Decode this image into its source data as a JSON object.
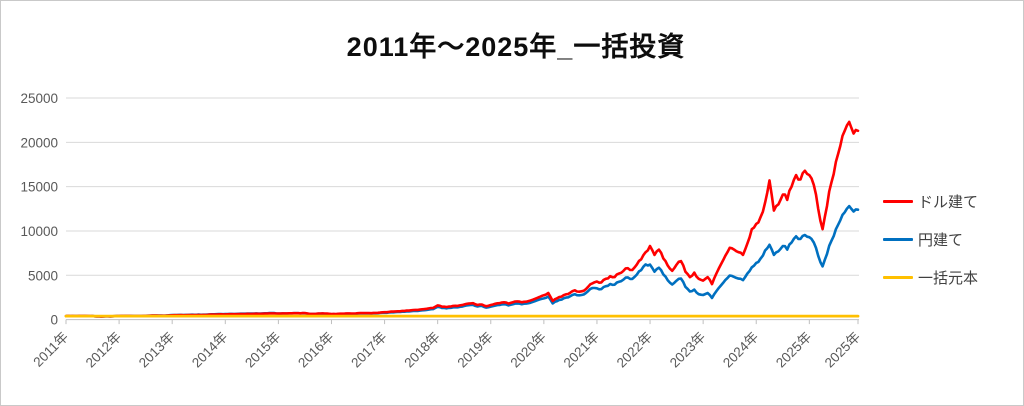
{
  "page": {
    "background": "#ffffff",
    "border_color": "#c9c9c9"
  },
  "chart_data": {
    "type": "line",
    "title": "2011年～2025年_一括投資",
    "xlabel": "",
    "ylabel": "",
    "ylim": [
      0,
      25000
    ],
    "y_ticks": [
      0,
      5000,
      10000,
      15000,
      20000,
      25000
    ],
    "x_tick_labels": [
      "2011年",
      "2012年",
      "2013年",
      "2014年",
      "2015年",
      "2016年",
      "2017年",
      "2018年",
      "2019年",
      "2020年",
      "2021年",
      "2022年",
      "2023年",
      "2024年",
      "2025年",
      "2025年"
    ],
    "grid": true,
    "legend_position": "right",
    "axis_text_color": "#595959",
    "gridline_color": "#D9D9D9",
    "axisline_color": "#BFBFBF",
    "series": [
      {
        "name": "ドル建て",
        "color": "#FF0000",
        "values": [
          400,
          410,
          405,
          420,
          415,
          400,
          395,
          350,
          335,
          370,
          365,
          385,
          400,
          415,
          420,
          410,
          390,
          405,
          420,
          435,
          450,
          445,
          435,
          460,
          480,
          495,
          505,
          500,
          520,
          510,
          535,
          525,
          545,
          565,
          580,
          595,
          590,
          610,
          605,
          620,
          635,
          650,
          640,
          665,
          655,
          680,
          700,
          695,
          680,
          705,
          695,
          715,
          725,
          710,
          730,
          650,
          640,
          690,
          700,
          680,
          635,
          625,
          670,
          680,
          695,
          690,
          725,
          740,
          735,
          725,
          755,
          790,
          830,
          870,
          900,
          940,
          980,
          1010,
          1050,
          1090,
          1130,
          1190,
          1260,
          1320,
          1600,
          1450,
          1420,
          1480,
          1560,
          1600,
          1700,
          1800,
          1850,
          1650,
          1700,
          1500,
          1650,
          1780,
          1850,
          1950,
          1800,
          1960,
          2050,
          1950,
          2020,
          2150,
          2350,
          2550,
          2750,
          3000,
          2100,
          2400,
          2600,
          2850,
          3050,
          3300,
          3150,
          3250,
          3700,
          4100,
          4300,
          4200,
          4600,
          4900,
          4800,
          5200,
          5500,
          5800,
          5600,
          6200,
          6800,
          7600,
          8300,
          7300,
          7900,
          6900,
          6100,
          5500,
          6200,
          6600,
          5400,
          4800,
          5300,
          4600,
          4400,
          4800,
          4000,
          5200,
          6200,
          7200,
          8100,
          7900,
          7600,
          7300,
          8600,
          10200,
          10800,
          11600,
          13200,
          15700,
          12300,
          13000,
          14100,
          13500,
          15000,
          16300,
          15800,
          16800,
          16300,
          15200,
          12500,
          10200,
          12800,
          15500,
          17800,
          19600,
          21300,
          22300,
          21000,
          21300
        ]
      },
      {
        "name": "円建て",
        "color": "#0070C0",
        "values": [
          398,
          408,
          402,
          418,
          413,
          398,
          392,
          350,
          336,
          370,
          364,
          382,
          400,
          418,
          424,
          418,
          394,
          410,
          424,
          441,
          459,
          454,
          444,
          469,
          504,
          520,
          530,
          525,
          546,
          536,
          562,
          551,
          572,
          593,
          609,
          625,
          620,
          641,
          635,
          651,
          667,
          683,
          672,
          698,
          688,
          714,
          735,
          730,
          680,
          705,
          693,
          710,
          718,
          700,
          716,
          634,
          621,
          666,
          672,
          650,
          597,
          588,
          630,
          639,
          653,
          649,
          682,
          696,
          691,
          682,
          710,
          743,
          764,
          800,
          825,
          855,
          890,
          915,
          945,
          980,
          1015,
          1065,
          1130,
          1190,
          1440,
          1305,
          1280,
          1330,
          1400,
          1440,
          1530,
          1620,
          1660,
          1480,
          1530,
          1350,
          1470,
          1580,
          1650,
          1740,
          1600,
          1740,
          1820,
          1740,
          1800,
          1910,
          2090,
          2270,
          2390,
          2610,
          1830,
          2090,
          2260,
          2480,
          2650,
          2870,
          2740,
          2830,
          3220,
          3570,
          3530,
          3440,
          3770,
          4020,
          3940,
          4260,
          4510,
          4760,
          4590,
          5080,
          5580,
          6230,
          6200,
          5400,
          5850,
          5100,
          4450,
          3960,
          4400,
          4620,
          3700,
          3170,
          3390,
          2860,
          2770,
          3000,
          2440,
          3220,
          3840,
          4460,
          4980,
          4820,
          4630,
          4450,
          5200,
          5900,
          6400,
          6900,
          7800,
          8440,
          7300,
          7700,
          8300,
          7900,
          8700,
          9400,
          9100,
          9540,
          9300,
          8700,
          7200,
          6000,
          7400,
          8900,
          10200,
          11200,
          12100,
          12800,
          12200,
          12400
        ]
      },
      {
        "name": "一括元本",
        "color": "#FFC000",
        "constant": 400
      }
    ]
  }
}
